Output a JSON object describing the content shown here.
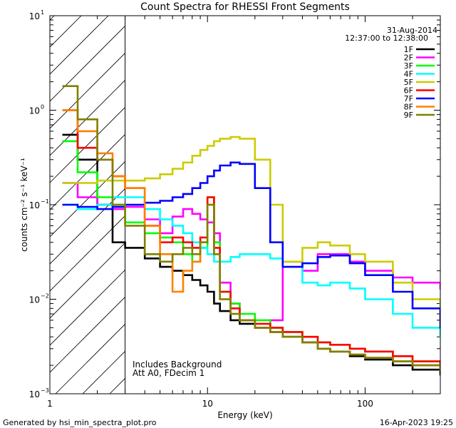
{
  "chart_data": {
    "type": "line",
    "title": "Count Spectra for RHESSI Front Segments",
    "xlabel": "Energy (keV)",
    "ylabel": "counts cm⁻² s⁻¹ keV⁻¹",
    "xscale": "log",
    "yscale": "log",
    "xlim": [
      1,
      300
    ],
    "ylim": [
      0.001,
      10
    ],
    "x_ticks": [
      {
        "value": 1,
        "label": "1"
      },
      {
        "value": 10,
        "label": "10"
      },
      {
        "value": 100,
        "label": "100"
      }
    ],
    "y_ticks": [
      {
        "value": 0.001,
        "base": "10",
        "exp": "−3"
      },
      {
        "value": 0.01,
        "base": "10",
        "exp": "−2"
      },
      {
        "value": 0.1,
        "base": "10",
        "exp": "−1"
      },
      {
        "value": 1,
        "base": "10",
        "exp": "0"
      },
      {
        "value": 10,
        "base": "10",
        "exp": "1"
      }
    ],
    "hatched_region": {
      "from": 1,
      "to": 3
    },
    "date": "31-Aug-2014",
    "time_range": "12:37:00 to 12:38:00",
    "annotations": [
      "Includes Background",
      "Att A0, FDecim 1"
    ],
    "legend_position": "top-right",
    "series": [
      {
        "name": "1F",
        "color": "#000000",
        "x": [
          1.2,
          1.5,
          2,
          2.5,
          3,
          4,
          5,
          6,
          7,
          8,
          9,
          10,
          11,
          12,
          14,
          16,
          20,
          25,
          30,
          40,
          50,
          60,
          80,
          100,
          150,
          200,
          300
        ],
        "y": [
          0.55,
          0.3,
          0.1,
          0.04,
          0.035,
          0.027,
          0.022,
          0.02,
          0.018,
          0.016,
          0.014,
          0.012,
          0.009,
          0.0075,
          0.006,
          0.0055,
          0.005,
          0.0045,
          0.004,
          0.0035,
          0.003,
          0.0028,
          0.0025,
          0.0023,
          0.002,
          0.0018,
          0.0016
        ]
      },
      {
        "name": "2F",
        "color": "#ff00ff",
        "x": [
          1.2,
          1.5,
          2,
          2.5,
          3,
          4,
          5,
          6,
          7,
          8,
          9,
          10,
          11,
          12,
          14,
          16,
          20,
          25,
          30,
          40,
          50,
          60,
          80,
          100,
          150,
          200,
          300
        ],
        "y": [
          0.17,
          0.12,
          0.1,
          0.09,
          0.095,
          0.07,
          0.05,
          0.075,
          0.09,
          0.08,
          0.07,
          0.065,
          0.05,
          0.015,
          0.009,
          0.006,
          0.005,
          0.006,
          0.025,
          0.02,
          0.03,
          0.03,
          0.025,
          0.02,
          0.017,
          0.015,
          0.013
        ]
      },
      {
        "name": "3F",
        "color": "#00ff00",
        "x": [
          1.2,
          1.5,
          2,
          2.5,
          3,
          4,
          5,
          6,
          7,
          8,
          9,
          10,
          11,
          12,
          14,
          16,
          20,
          25,
          30,
          40,
          50,
          60,
          80,
          100,
          150,
          200,
          300
        ],
        "y": [
          0.47,
          0.22,
          0.12,
          0.1,
          0.065,
          0.05,
          0.045,
          0.04,
          0.03,
          0.025,
          0.035,
          0.12,
          0.04,
          0.012,
          0.009,
          0.007,
          0.006,
          0.005,
          0.0045,
          0.004,
          0.0035,
          0.0033,
          0.003,
          0.0028,
          0.0025,
          0.0022,
          0.002
        ]
      },
      {
        "name": "4F",
        "color": "#00ffff",
        "x": [
          1.2,
          1.5,
          2,
          2.5,
          3,
          4,
          5,
          6,
          7,
          8,
          9,
          10,
          11,
          12,
          14,
          16,
          20,
          25,
          30,
          40,
          50,
          60,
          80,
          100,
          150,
          200,
          300
        ],
        "y": [
          0.1,
          0.09,
          0.1,
          0.12,
          0.12,
          0.09,
          0.07,
          0.06,
          0.05,
          0.04,
          0.035,
          0.03,
          0.025,
          0.025,
          0.028,
          0.03,
          0.03,
          0.027,
          0.025,
          0.015,
          0.014,
          0.015,
          0.013,
          0.01,
          0.007,
          0.005,
          0.004
        ]
      },
      {
        "name": "5F",
        "color": "#cccc00",
        "x": [
          1.2,
          1.5,
          2,
          2.5,
          3,
          4,
          5,
          6,
          7,
          8,
          9,
          10,
          11,
          12,
          14,
          16,
          20,
          25,
          30,
          40,
          50,
          60,
          80,
          100,
          150,
          200,
          300
        ],
        "y": [
          0.17,
          0.17,
          0.18,
          0.18,
          0.18,
          0.19,
          0.21,
          0.24,
          0.28,
          0.33,
          0.38,
          0.42,
          0.47,
          0.5,
          0.52,
          0.5,
          0.3,
          0.1,
          0.025,
          0.035,
          0.04,
          0.037,
          0.03,
          0.025,
          0.015,
          0.01,
          0.006
        ]
      },
      {
        "name": "6F",
        "color": "#ff0000",
        "x": [
          1.2,
          1.5,
          2,
          2.5,
          3,
          4,
          5,
          6,
          7,
          8,
          9,
          10,
          11,
          12,
          14,
          16,
          20,
          25,
          30,
          40,
          50,
          60,
          80,
          100,
          150,
          200,
          300
        ],
        "y": [
          1.0,
          0.4,
          0.3,
          0.2,
          0.15,
          0.06,
          0.04,
          0.045,
          0.04,
          0.035,
          0.045,
          0.12,
          0.035,
          0.012,
          0.008,
          0.006,
          0.0055,
          0.005,
          0.0045,
          0.004,
          0.0035,
          0.0033,
          0.003,
          0.0028,
          0.0025,
          0.0022,
          0.0018
        ]
      },
      {
        "name": "7F",
        "color": "#0000ff",
        "x": [
          1.2,
          1.5,
          2,
          2.5,
          3,
          4,
          5,
          6,
          7,
          8,
          9,
          10,
          11,
          12,
          14,
          16,
          20,
          25,
          30,
          40,
          50,
          60,
          80,
          100,
          150,
          200,
          300
        ],
        "y": [
          0.1,
          0.095,
          0.09,
          0.095,
          0.1,
          0.105,
          0.11,
          0.12,
          0.13,
          0.15,
          0.17,
          0.2,
          0.23,
          0.26,
          0.28,
          0.27,
          0.15,
          0.04,
          0.022,
          0.024,
          0.028,
          0.029,
          0.024,
          0.018,
          0.012,
          0.008,
          0.005
        ]
      },
      {
        "name": "8F",
        "color": "#ff8000",
        "x": [
          1.2,
          1.5,
          2,
          2.5,
          3,
          4,
          5,
          6,
          7,
          8,
          9,
          10,
          11,
          12,
          14,
          16,
          20,
          25,
          30,
          40,
          50,
          60,
          80,
          100,
          150,
          200,
          300
        ],
        "y": [
          1.0,
          0.6,
          0.35,
          0.2,
          0.15,
          0.06,
          0.03,
          0.012,
          0.02,
          0.025,
          0.04,
          0.1,
          0.03,
          0.01,
          0.007,
          0.006,
          0.005,
          0.0045,
          0.004,
          0.0035,
          0.003,
          0.0028,
          0.0026,
          0.0024,
          0.0022,
          0.002,
          0.0018
        ]
      },
      {
        "name": "9F",
        "color": "#808000",
        "x": [
          1.2,
          1.5,
          2,
          2.5,
          3,
          4,
          5,
          6,
          7,
          8,
          9,
          10,
          11,
          12,
          14,
          16,
          20,
          25,
          30,
          40,
          50,
          60,
          80,
          100,
          150,
          200,
          300
        ],
        "y": [
          1.8,
          0.8,
          0.3,
          0.1,
          0.06,
          0.03,
          0.025,
          0.03,
          0.035,
          0.03,
          0.04,
          0.1,
          0.03,
          0.01,
          0.007,
          0.006,
          0.005,
          0.0045,
          0.004,
          0.0035,
          0.003,
          0.0028,
          0.0026,
          0.0024,
          0.0022,
          0.002,
          0.0018
        ]
      }
    ]
  },
  "footer": {
    "generator": "Generated by hsi_min_spectra_plot.pro",
    "timestamp": "16-Apr-2023 19:25"
  }
}
